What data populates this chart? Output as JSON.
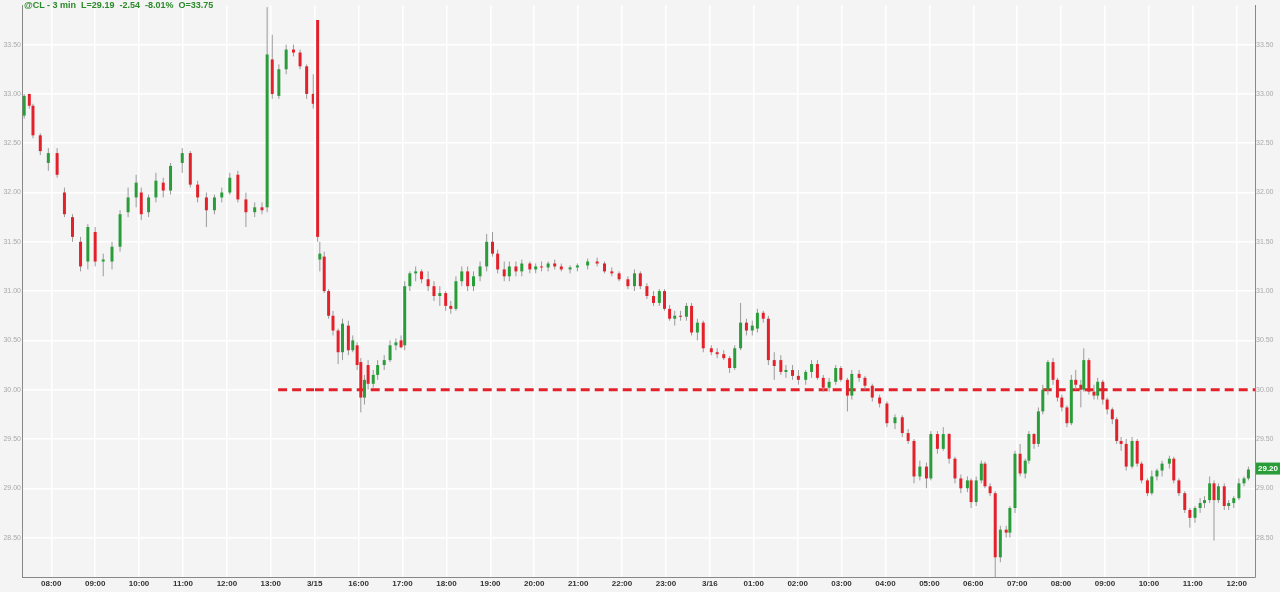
{
  "chart_data": [
    {
      "type": "candlestick",
      "title": "@CL - 3 min  L=29.19  -2.54  -8.01%  O=33.75",
      "x": [
        "--03-13T07:23",
        "--03-13T07:30",
        "--03-13T07:35",
        "--03-13T07:45",
        "--03-13T07:56",
        "--03-13T08:08",
        "--03-13T08:18",
        "--03-13T08:29",
        "--03-13T08:40",
        "--03-13T08:50",
        "--03-13T09:00",
        "--03-13T09:11",
        "--03-13T09:23",
        "--03-13T09:34",
        "--03-13T09:45",
        "--03-13T09:56",
        "--03-13T10:03",
        "--03-13T10:13",
        "--03-13T10:23",
        "--03-13T10:33",
        "--03-13T10:43",
        "--03-13T10:59",
        "--03-13T11:10",
        "--03-13T11:20",
        "--03-13T11:32",
        "--03-13T11:43",
        "--03-13T11:53",
        "--03-13T12:04",
        "--03-13T12:15",
        "--03-13T12:26",
        "--03-13T12:38",
        "--03-13T12:48",
        "--03-13T12:55",
        "--03-13T13:02",
        "--03-13T13:11",
        "--03-13T13:21",
        "--03-13T13:31",
        "--03-13T13:40",
        "--03-13T13:49",
        "--03-13T13:58"
      ],
      "ohlc": [
        [
          32.78,
          33.0,
          32.75,
          32.98
        ],
        [
          33.0,
          33.0,
          32.85,
          32.88
        ],
        [
          32.88,
          32.9,
          32.55,
          32.58
        ],
        [
          32.58,
          32.6,
          32.38,
          32.42
        ],
        [
          32.3,
          32.45,
          32.22,
          32.4
        ],
        [
          32.4,
          32.45,
          32.15,
          32.18
        ],
        [
          32.0,
          32.05,
          31.75,
          31.78
        ],
        [
          31.75,
          31.78,
          31.5,
          31.55
        ],
        [
          31.5,
          31.55,
          31.2,
          31.25
        ],
        [
          31.3,
          31.68,
          31.22,
          31.65
        ],
        [
          31.6,
          31.65,
          31.25,
          31.3
        ],
        [
          31.3,
          31.38,
          31.15,
          31.32
        ],
        [
          31.3,
          31.5,
          31.22,
          31.45
        ],
        [
          31.45,
          31.82,
          31.4,
          31.78
        ],
        [
          31.8,
          32.05,
          31.75,
          31.95
        ],
        [
          31.95,
          32.18,
          31.85,
          32.1
        ],
        [
          32.0,
          32.05,
          31.72,
          31.78
        ],
        [
          31.8,
          31.98,
          31.75,
          31.95
        ],
        [
          31.95,
          32.2,
          31.9,
          32.12
        ],
        [
          32.1,
          32.15,
          31.95,
          32.02
        ],
        [
          32.02,
          32.3,
          31.98,
          32.27
        ],
        [
          32.3,
          32.45,
          32.2,
          32.4
        ],
        [
          32.4,
          32.42,
          32.05,
          32.08
        ],
        [
          32.08,
          32.12,
          31.9,
          31.95
        ],
        [
          31.95,
          32.0,
          31.65,
          31.82
        ],
        [
          31.82,
          31.98,
          31.78,
          31.95
        ],
        [
          31.95,
          32.05,
          31.9,
          32.0
        ],
        [
          32.0,
          32.2,
          31.98,
          32.15
        ],
        [
          32.18,
          32.22,
          31.9,
          31.93
        ],
        [
          31.93,
          32.0,
          31.65,
          31.8
        ],
        [
          31.8,
          31.9,
          31.75,
          31.85
        ],
        [
          31.85,
          31.9,
          31.78,
          31.82
        ],
        [
          31.85,
          33.88,
          31.8,
          33.4
        ],
        [
          33.35,
          33.6,
          32.95,
          33.0
        ],
        [
          32.98,
          33.3,
          32.95,
          33.25
        ],
        [
          33.25,
          33.5,
          33.2,
          33.45
        ],
        [
          33.45,
          33.5,
          33.38,
          33.42
        ],
        [
          33.42,
          33.45,
          33.25,
          33.28
        ],
        [
          33.28,
          33.3,
          32.95,
          33.0
        ],
        [
          33.0,
          33.2,
          32.85,
          32.9
        ]
      ],
      "series": [
        {
          "type": "line",
          "x": [
            "--03-13T13:10",
            "--03-13T14:00"
          ],
          "values": [
            30,
            30
          ],
          "color": "#e3212b",
          "line_style": "dashed",
          "marker": "none"
        }
      ],
      "xlim": [
        "--03-13T07:20",
        "--03-13T14:00"
      ],
      "xticks": [
        {
          "value": "--03-13T08:00",
          "label": "08:00"
        },
        {
          "value": "--03-13T09:00",
          "label": "09:00"
        },
        {
          "value": "--03-13T10:00",
          "label": "10:00"
        },
        {
          "value": "--03-13T11:00",
          "label": "11:00"
        },
        {
          "value": "--03-13T12:00",
          "label": "12:00"
        },
        {
          "value": "--03-13T13:00",
          "label": "13:00"
        }
      ],
      "ylim": [
        28.1,
        33.9
      ],
      "yticks": [
        {
          "value": 28.5,
          "label": "28.50"
        },
        {
          "value": 29,
          "label": "29.00"
        },
        {
          "value": 29.5,
          "label": "29.50"
        },
        {
          "value": 30,
          "label": "30.00"
        },
        {
          "value": 30.5,
          "label": "30.50"
        },
        {
          "value": 31,
          "label": "31.00"
        },
        {
          "value": 31.5,
          "label": "31.50"
        },
        {
          "value": 32,
          "label": "32.00"
        },
        {
          "value": 32.5,
          "label": "32.50"
        },
        {
          "value": 33,
          "label": "33.00"
        },
        {
          "value": 33.5,
          "label": "33.50"
        }
      ],
      "grid": true,
      "legend": false
    },
    {
      "type": "candlestick",
      "x": [
        "--03-15T15:04",
        "--03-15T15:07",
        "--03-15T15:13",
        "--03-15T15:19",
        "--03-15T15:25",
        "--03-15T15:32",
        "--03-15T15:38",
        "--03-15T15:46",
        "--03-15T15:52",
        "--03-15T15:58",
        "--03-15T16:03",
        "--03-15T16:08",
        "--03-15T16:13",
        "--03-15T16:20",
        "--03-15T16:26",
        "--03-15T16:35",
        "--03-15T16:43",
        "--03-15T16:51",
        "--03-15T16:58",
        "--03-15T17:03",
        "--03-15T17:10",
        "--03-15T17:18",
        "--03-15T17:26",
        "--03-15T17:35",
        "--03-15T17:43",
        "--03-15T17:51",
        "--03-15T17:59",
        "--03-15T18:06",
        "--03-15T18:13",
        "--03-15T18:21",
        "--03-15T18:29",
        "--03-15T18:37",
        "--03-15T18:46",
        "--03-15T18:55",
        "--03-15T19:03",
        "--03-15T19:10",
        "--03-15T19:19",
        "--03-15T19:26",
        "--03-15T19:35",
        "--03-15T19:43",
        "--03-15T19:54",
        "--03-15T20:02",
        "--03-15T20:10",
        "--03-15T20:19",
        "--03-15T20:28",
        "--03-15T20:37",
        "--03-15T20:49",
        "--03-15T20:59",
        "--03-15T21:13",
        "--03-15T21:26",
        "--03-15T21:36",
        "--03-15T21:46",
        "--03-15T21:56",
        "--03-15T22:08",
        "--03-15T22:17",
        "--03-15T22:25",
        "--03-15T22:34",
        "--03-15T22:43",
        "--03-15T22:51",
        "--03-15T22:58",
        "--03-15T23:05",
        "--03-15T23:12",
        "--03-15T23:20",
        "--03-15T23:28",
        "--03-15T23:35",
        "--03-15T23:43",
        "--03-15T23:51",
        "--03-16T00:02",
        "--03-16T00:10",
        "--03-16T00:19",
        "--03-16T00:27",
        "--03-16T00:34",
        "--03-16T00:42",
        "--03-16T00:50",
        "--03-16T00:58",
        "--03-16T01:05",
        "--03-16T01:13",
        "--03-16T01:20",
        "--03-16T01:28",
        "--03-16T01:37",
        "--03-16T01:44",
        "--03-16T01:53",
        "--03-16T02:01",
        "--03-16T02:11",
        "--03-16T02:19",
        "--03-16T02:27",
        "--03-16T02:35",
        "--03-16T02:43",
        "--03-16T02:52",
        "--03-16T02:59",
        "--03-16T03:08",
        "--03-16T03:14",
        "--03-16T03:24",
        "--03-16T03:32",
        "--03-16T03:42",
        "--03-16T03:52",
        "--03-16T04:02",
        "--03-16T04:13",
        "--03-16T04:23",
        "--03-16T04:31",
        "--03-16T04:39",
        "--03-16T04:47",
        "--03-16T04:56",
        "--03-16T05:02",
        "--03-16T05:11",
        "--03-16T05:19",
        "--03-16T05:27",
        "--03-16T05:35",
        "--03-16T05:43",
        "--03-16T05:52",
        "--03-16T05:57",
        "--03-16T06:04",
        "--03-16T06:11",
        "--03-16T06:16",
        "--03-16T06:23",
        "--03-16T06:30",
        "--03-16T06:37",
        "--03-16T06:45",
        "--03-16T06:50",
        "--03-16T06:57",
        "--03-16T07:04",
        "--03-16T07:11",
        "--03-16T07:16",
        "--03-16T07:23",
        "--03-16T07:29",
        "--03-16T07:35",
        "--03-16T07:42",
        "--03-16T07:49",
        "--03-16T07:55",
        "--03-16T08:01",
        "--03-16T08:08",
        "--03-16T08:14",
        "--03-16T08:20",
        "--03-16T08:27",
        "--03-16T08:31",
        "--03-16T08:38",
        "--03-16T08:45",
        "--03-16T08:50",
        "--03-16T08:57",
        "--03-16T09:03",
        "--03-16T09:10",
        "--03-16T09:16",
        "--03-16T09:22",
        "--03-16T09:29",
        "--03-16T09:37",
        "--03-16T09:44",
        "--03-16T09:50",
        "--03-16T09:58",
        "--03-16T10:04",
        "--03-16T10:11",
        "--03-16T10:18",
        "--03-16T10:28",
        "--03-16T10:34",
        "--03-16T10:41",
        "--03-16T10:49",
        "--03-16T10:56",
        "--03-16T11:03",
        "--03-16T11:10",
        "--03-16T11:16",
        "--03-16T11:23",
        "--03-16T11:29",
        "--03-16T11:35",
        "--03-16T11:43",
        "--03-16T11:49",
        "--03-16T11:56",
        "--03-16T12:03",
        "--03-16T12:10",
        "--03-16T12:16"
      ],
      "ohlc": [
        [
          33.75,
          33.75,
          31.5,
          31.55
        ],
        [
          31.32,
          31.5,
          31.2,
          31.38
        ],
        [
          31.35,
          31.4,
          30.98,
          31.0
        ],
        [
          31.0,
          31.02,
          30.72,
          30.75
        ],
        [
          30.75,
          30.8,
          30.55,
          30.6
        ],
        [
          30.6,
          30.62,
          30.26,
          30.38
        ],
        [
          30.38,
          30.72,
          30.3,
          30.67
        ],
        [
          30.65,
          30.7,
          30.35,
          30.4
        ],
        [
          30.4,
          30.55,
          30.38,
          30.5
        ],
        [
          30.45,
          30.48,
          30.2,
          30.25
        ],
        [
          30.28,
          30.32,
          29.77,
          29.92
        ],
        [
          29.92,
          30.15,
          29.85,
          30.1
        ],
        [
          30.25,
          30.3,
          30.0,
          30.06
        ],
        [
          30.06,
          30.2,
          30.02,
          30.15
        ],
        [
          30.15,
          30.3,
          30.1,
          30.25
        ],
        [
          30.25,
          30.35,
          30.2,
          30.3
        ],
        [
          30.3,
          30.5,
          30.28,
          30.45
        ],
        [
          30.45,
          30.52,
          30.4,
          30.48
        ],
        [
          30.5,
          30.55,
          30.42,
          30.43
        ],
        [
          30.45,
          31.1,
          30.4,
          31.05
        ],
        [
          31.05,
          31.2,
          31.0,
          31.18
        ],
        [
          31.18,
          31.25,
          31.1,
          31.2
        ],
        [
          31.2,
          31.22,
          31.08,
          31.12
        ],
        [
          31.12,
          31.2,
          31.0,
          31.05
        ],
        [
          31.05,
          31.1,
          30.9,
          30.95
        ],
        [
          30.95,
          31.05,
          30.85,
          30.98
        ],
        [
          30.98,
          31.0,
          30.8,
          30.85
        ],
        [
          30.85,
          30.9,
          30.77,
          30.82
        ],
        [
          30.82,
          31.15,
          30.8,
          31.1
        ],
        [
          31.1,
          31.25,
          31.05,
          31.2
        ],
        [
          31.2,
          31.25,
          31.0,
          31.05
        ],
        [
          31.05,
          31.2,
          31.0,
          31.15
        ],
        [
          31.15,
          31.3,
          31.1,
          31.25
        ],
        [
          31.25,
          31.58,
          31.2,
          31.5
        ],
        [
          31.5,
          31.6,
          31.35,
          31.38
        ],
        [
          31.38,
          31.42,
          31.18,
          31.22
        ],
        [
          31.22,
          31.3,
          31.1,
          31.15
        ],
        [
          31.15,
          31.3,
          31.1,
          31.25
        ],
        [
          31.25,
          31.3,
          31.15,
          31.2
        ],
        [
          31.2,
          31.32,
          31.15,
          31.28
        ],
        [
          31.28,
          31.3,
          31.18,
          31.22
        ],
        [
          31.22,
          31.28,
          31.18,
          31.25
        ],
        [
          31.25,
          31.3,
          31.2,
          31.24
        ],
        [
          31.24,
          31.3,
          31.2,
          31.28
        ],
        [
          31.28,
          31.32,
          31.22,
          31.25
        ],
        [
          31.25,
          31.28,
          31.2,
          31.22
        ],
        [
          31.22,
          31.26,
          31.18,
          31.24
        ],
        [
          31.24,
          31.28,
          31.2,
          31.26
        ],
        [
          31.26,
          31.33,
          31.22,
          31.3
        ],
        [
          31.3,
          31.34,
          31.25,
          31.28
        ],
        [
          31.28,
          31.3,
          31.18,
          31.2
        ],
        [
          31.2,
          31.24,
          31.15,
          31.18
        ],
        [
          31.18,
          31.2,
          31.1,
          31.12
        ],
        [
          31.12,
          31.15,
          31.02,
          31.05
        ],
        [
          31.05,
          31.22,
          31.0,
          31.18
        ],
        [
          31.18,
          31.2,
          31.02,
          31.05
        ],
        [
          31.05,
          31.08,
          30.92,
          30.95
        ],
        [
          30.95,
          31.0,
          30.85,
          30.88
        ],
        [
          30.88,
          31.02,
          30.85,
          31.0
        ],
        [
          31.0,
          31.02,
          30.8,
          30.82
        ],
        [
          30.82,
          30.86,
          30.7,
          30.72
        ],
        [
          30.72,
          30.8,
          30.65,
          30.75
        ],
        [
          30.75,
          30.8,
          30.7,
          30.74
        ],
        [
          30.74,
          30.88,
          30.7,
          30.85
        ],
        [
          30.85,
          30.88,
          30.55,
          30.58
        ],
        [
          30.58,
          30.72,
          30.5,
          30.68
        ],
        [
          30.68,
          30.7,
          30.38,
          30.42
        ],
        [
          30.42,
          30.45,
          30.35,
          30.38
        ],
        [
          30.38,
          30.42,
          30.32,
          30.36
        ],
        [
          30.36,
          30.4,
          30.3,
          30.32
        ],
        [
          30.32,
          30.34,
          30.17,
          30.22
        ],
        [
          30.22,
          30.45,
          30.2,
          30.42
        ],
        [
          30.42,
          30.88,
          30.4,
          30.68
        ],
        [
          30.68,
          30.72,
          30.55,
          30.6
        ],
        [
          30.6,
          30.7,
          30.55,
          30.65
        ],
        [
          30.62,
          30.82,
          30.58,
          30.78
        ],
        [
          30.78,
          30.8,
          30.68,
          30.72
        ],
        [
          30.72,
          30.75,
          30.25,
          30.3
        ],
        [
          30.3,
          30.38,
          30.1,
          30.24
        ],
        [
          30.3,
          30.35,
          30.15,
          30.18
        ],
        [
          30.18,
          30.25,
          30.12,
          30.2
        ],
        [
          30.2,
          30.25,
          30.1,
          30.14
        ],
        [
          30.14,
          30.2,
          30.05,
          30.1
        ],
        [
          30.1,
          30.2,
          30.05,
          30.18
        ],
        [
          30.18,
          30.3,
          30.12,
          30.26
        ],
        [
          30.26,
          30.3,
          30.1,
          30.12
        ],
        [
          30.12,
          30.15,
          29.98,
          30.02
        ],
        [
          30.02,
          30.12,
          29.98,
          30.08
        ],
        [
          30.08,
          30.25,
          30.05,
          30.22
        ],
        [
          30.22,
          30.24,
          30.08,
          30.1
        ],
        [
          30.1,
          30.12,
          29.78,
          29.94
        ],
        [
          29.94,
          30.2,
          29.9,
          30.16
        ],
        [
          30.16,
          30.2,
          30.08,
          30.12
        ],
        [
          30.12,
          30.14,
          30.0,
          30.04
        ],
        [
          30.04,
          30.06,
          29.88,
          29.92
        ],
        [
          29.92,
          29.95,
          29.82,
          29.86
        ],
        [
          29.86,
          29.88,
          29.62,
          29.66
        ],
        [
          29.66,
          29.75,
          29.6,
          29.72
        ],
        [
          29.72,
          29.74,
          29.52,
          29.56
        ],
        [
          29.56,
          29.6,
          29.45,
          29.48
        ],
        [
          29.48,
          29.5,
          29.05,
          29.12
        ],
        [
          29.12,
          29.28,
          29.08,
          29.22
        ],
        [
          29.22,
          29.26,
          29.0,
          29.1
        ],
        [
          29.1,
          29.58,
          29.08,
          29.55
        ],
        [
          29.55,
          29.58,
          29.35,
          29.4
        ],
        [
          29.4,
          29.62,
          29.38,
          29.55
        ],
        [
          29.55,
          29.56,
          29.25,
          29.3
        ],
        [
          29.3,
          29.32,
          29.05,
          29.1
        ],
        [
          29.1,
          29.14,
          28.95,
          29.0
        ],
        [
          29.0,
          29.12,
          28.96,
          29.08
        ],
        [
          29.08,
          29.1,
          28.8,
          28.86
        ],
        [
          28.86,
          29.12,
          28.82,
          29.08
        ],
        [
          29.08,
          29.28,
          29.05,
          29.25
        ],
        [
          29.25,
          29.27,
          29.0,
          29.02
        ],
        [
          29.02,
          29.05,
          28.92,
          28.95
        ],
        [
          28.95,
          28.97,
          28.1,
          28.3
        ],
        [
          28.3,
          28.62,
          28.25,
          28.58
        ],
        [
          28.58,
          28.62,
          28.5,
          28.55
        ],
        [
          28.55,
          28.82,
          28.5,
          28.8
        ],
        [
          28.8,
          29.38,
          28.75,
          29.35
        ],
        [
          29.35,
          29.45,
          29.12,
          29.15
        ],
        [
          29.15,
          29.3,
          29.1,
          29.28
        ],
        [
          29.28,
          29.58,
          29.25,
          29.55
        ],
        [
          29.55,
          29.56,
          29.4,
          29.45
        ],
        [
          29.45,
          29.82,
          29.42,
          29.78
        ],
        [
          29.78,
          30.05,
          29.75,
          30.0
        ],
        [
          30.0,
          30.3,
          29.95,
          30.28
        ],
        [
          30.28,
          30.32,
          30.05,
          30.1
        ],
        [
          30.1,
          30.12,
          29.88,
          29.92
        ],
        [
          29.92,
          29.95,
          29.78,
          29.82
        ],
        [
          29.82,
          29.84,
          29.62,
          29.66
        ],
        [
          29.66,
          30.15,
          29.64,
          30.1
        ],
        [
          30.1,
          30.2,
          30.0,
          30.05
        ],
        [
          30.05,
          30.1,
          29.82,
          30.0
        ],
        [
          30.0,
          30.42,
          29.98,
          30.3
        ],
        [
          30.3,
          30.32,
          29.95,
          29.98
        ],
        [
          29.98,
          30.05,
          29.9,
          29.94
        ],
        [
          29.94,
          30.12,
          29.9,
          30.08
        ],
        [
          30.08,
          30.1,
          29.85,
          29.9
        ],
        [
          29.9,
          29.92,
          29.75,
          29.8
        ],
        [
          29.8,
          29.82,
          29.65,
          29.7
        ],
        [
          29.7,
          29.72,
          29.45,
          29.48
        ],
        [
          29.48,
          29.52,
          29.38,
          29.45
        ],
        [
          29.45,
          29.5,
          29.18,
          29.22
        ],
        [
          29.22,
          29.52,
          29.2,
          29.48
        ],
        [
          29.48,
          29.5,
          29.22,
          29.25
        ],
        [
          29.25,
          29.27,
          29.05,
          29.08
        ],
        [
          29.08,
          29.1,
          28.92,
          28.95
        ],
        [
          28.95,
          29.18,
          28.93,
          29.12
        ],
        [
          29.12,
          29.2,
          29.08,
          29.18
        ],
        [
          29.18,
          29.28,
          29.12,
          29.25
        ],
        [
          29.25,
          29.33,
          29.2,
          29.3
        ],
        [
          29.3,
          29.32,
          29.05,
          29.08
        ],
        [
          29.08,
          29.1,
          28.92,
          28.95
        ],
        [
          28.95,
          28.97,
          28.75,
          28.78
        ],
        [
          28.78,
          28.8,
          28.6,
          28.7
        ],
        [
          28.7,
          28.82,
          28.65,
          28.8
        ],
        [
          28.8,
          28.9,
          28.75,
          28.85
        ],
        [
          28.85,
          28.92,
          28.8,
          28.88
        ],
        [
          28.88,
          29.12,
          28.85,
          29.05
        ],
        [
          29.05,
          29.08,
          28.47,
          28.88
        ],
        [
          28.88,
          29.05,
          28.85,
          29.02
        ],
        [
          29.02,
          29.05,
          28.78,
          28.82
        ],
        [
          28.82,
          28.88,
          28.78,
          28.85
        ],
        [
          28.85,
          28.92,
          28.8,
          28.9
        ],
        [
          28.9,
          29.1,
          28.88,
          29.05
        ],
        [
          29.05,
          29.12,
          29.02,
          29.1
        ],
        [
          29.1,
          29.22,
          29.08,
          29.19
        ]
      ],
      "series": [
        {
          "type": "line",
          "x": [
            "--03-15T15:00",
            "--03-16T12:25"
          ],
          "values": [
            30,
            30
          ],
          "color": "#e3212b",
          "line_style": "dashed",
          "marker": "none"
        }
      ],
      "xlim": [
        "--03-15T15:00",
        "--03-16T12:25"
      ],
      "xticks": [
        {
          "value": "--03-15T15:00",
          "label": "3/15"
        },
        {
          "value": "--03-15T16:00",
          "label": "16:00"
        },
        {
          "value": "--03-15T17:00",
          "label": "17:00"
        },
        {
          "value": "--03-15T18:00",
          "label": "18:00"
        },
        {
          "value": "--03-15T19:00",
          "label": "19:00"
        },
        {
          "value": "--03-15T20:00",
          "label": "20:00"
        },
        {
          "value": "--03-15T21:00",
          "label": "21:00"
        },
        {
          "value": "--03-15T22:00",
          "label": "22:00"
        },
        {
          "value": "--03-15T23:00",
          "label": "23:00"
        },
        {
          "value": "--03-16T00:00",
          "label": "3/16"
        },
        {
          "value": "--03-16T01:00",
          "label": "01:00"
        },
        {
          "value": "--03-16T02:00",
          "label": "02:00"
        },
        {
          "value": "--03-16T03:00",
          "label": "03:00"
        },
        {
          "value": "--03-16T04:00",
          "label": "04:00"
        },
        {
          "value": "--03-16T05:00",
          "label": "05:00"
        },
        {
          "value": "--03-16T06:00",
          "label": "06:00"
        },
        {
          "value": "--03-16T07:00",
          "label": "07:00"
        },
        {
          "value": "--03-16T08:00",
          "label": "08:00"
        },
        {
          "value": "--03-16T09:00",
          "label": "09:00"
        },
        {
          "value": "--03-16T10:00",
          "label": "10:00"
        },
        {
          "value": "--03-16T11:00",
          "label": "11:00"
        },
        {
          "value": "--03-16T12:00",
          "label": "12:00"
        }
      ],
      "ylim": [
        28.1,
        33.9
      ],
      "yticks": [
        {
          "value": 28.5,
          "label": "28.50"
        },
        {
          "value": 29,
          "label": "29.00"
        },
        {
          "value": 29.5,
          "label": "29.50"
        },
        {
          "value": 30,
          "label": "30.00"
        },
        {
          "value": 30.5,
          "label": "30.50"
        },
        {
          "value": 31,
          "label": "31.00"
        },
        {
          "value": 31.5,
          "label": "31.50"
        },
        {
          "value": 32,
          "label": "32.00"
        },
        {
          "value": 32.5,
          "label": "32.50"
        },
        {
          "value": 33,
          "label": "33.00"
        },
        {
          "value": 33.5,
          "label": "33.50"
        }
      ],
      "annotations": [
        {
          "text": "29.20",
          "y": 29.2
        }
      ],
      "grid": true,
      "legend": false
    }
  ]
}
